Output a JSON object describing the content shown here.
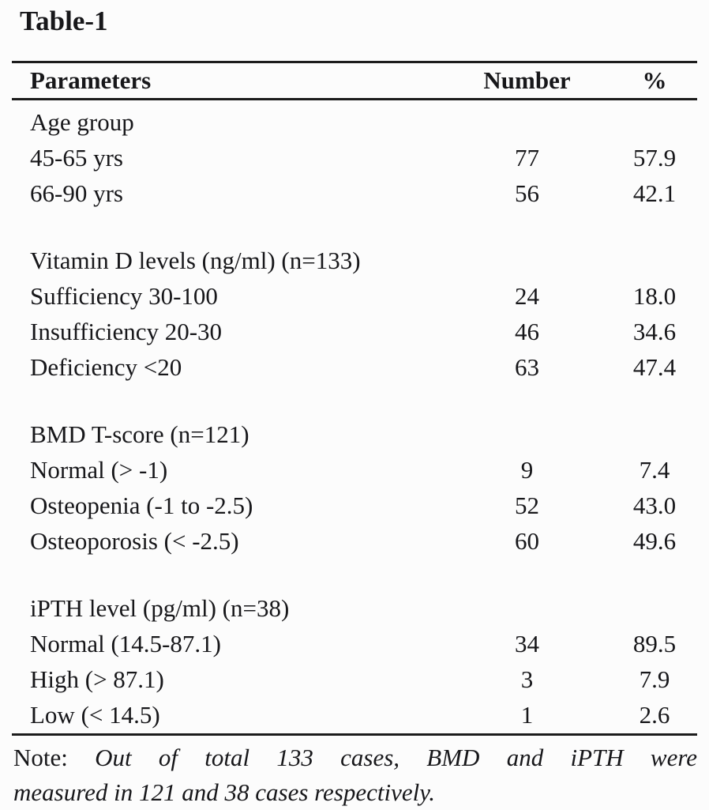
{
  "title": "Table-1",
  "colors": {
    "ink": "#1c1c1c",
    "background": "#fcfcfc"
  },
  "table": {
    "headers": [
      "Parameters",
      "Number",
      "%"
    ],
    "sections": [
      {
        "label": "Age group",
        "rows": [
          [
            "45-65 yrs",
            "77",
            "57.9"
          ],
          [
            "66-90 yrs",
            "56",
            "42.1"
          ]
        ]
      },
      {
        "label": "Vitamin D levels (ng/ml) (n=133)",
        "rows": [
          [
            "Sufficiency 30-100",
            "24",
            "18.0"
          ],
          [
            "Insufficiency 20-30",
            "46",
            "34.6"
          ],
          [
            "Deficiency <20",
            "63",
            "47.4"
          ]
        ]
      },
      {
        "label": "BMD T-score (n=121)",
        "rows": [
          [
            "Normal (> -1)",
            "9",
            "7.4"
          ],
          [
            "Osteopenia (-1 to -2.5)",
            "52",
            "43.0"
          ],
          [
            "Osteoporosis (< -2.5)",
            "60",
            "49.6"
          ]
        ]
      },
      {
        "label": "iPTH level (pg/ml) (n=38)",
        "rows": [
          [
            "Normal (14.5-87.1)",
            "34",
            "89.5"
          ],
          [
            "High (> 87.1)",
            "3",
            "7.9"
          ],
          [
            "Low (< 14.5)",
            "1",
            "2.6"
          ]
        ]
      }
    ]
  },
  "note": {
    "label": "Note:",
    "line1": "Out of total 133 cases, BMD and iPTH were",
    "line2": "measured in 121 and 38 cases respectively."
  }
}
